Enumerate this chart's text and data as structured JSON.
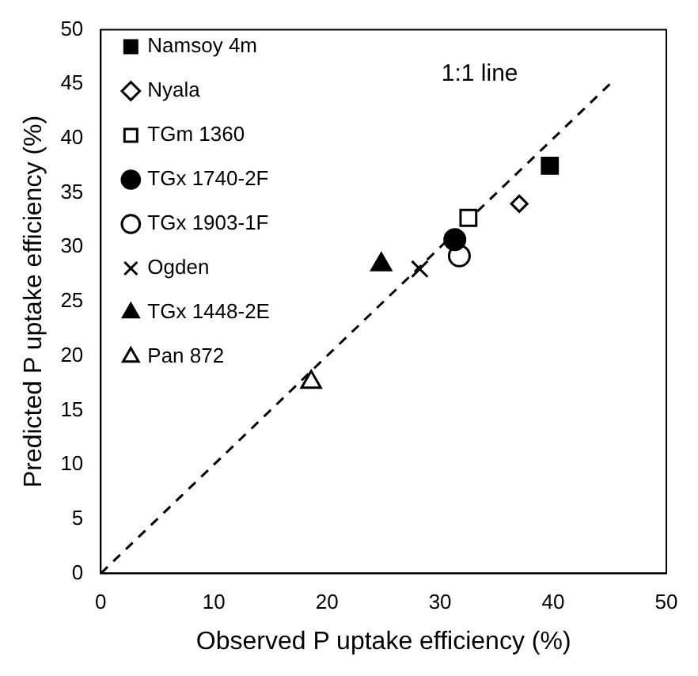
{
  "chart_data": {
    "type": "scatter",
    "xlabel": "Observed P uptake efficiency (%)",
    "ylabel": "Predicted P uptake efficiency (%)",
    "xlim": [
      0,
      50
    ],
    "ylim": [
      0,
      50
    ],
    "xticks": [
      0,
      10,
      20,
      30,
      40,
      50
    ],
    "yticks": [
      0,
      5,
      10,
      15,
      20,
      25,
      30,
      35,
      40,
      45,
      50
    ],
    "grid": false,
    "legend": "top left",
    "annotations": [
      "1:1 line"
    ],
    "series": [
      {
        "name": "Namsoy 4m",
        "color": "#000000",
        "marker": "square",
        "x": [
          39.7
        ],
        "values": [
          37.5
        ]
      },
      {
        "name": "Nyala",
        "color": "#ffffff",
        "marker": "diamond",
        "x": [
          37
        ],
        "values": [
          34
        ]
      },
      {
        "name": "TGm 1360",
        "color": "#ffffff",
        "marker": "square",
        "x": [
          32.5
        ],
        "values": [
          32.7
        ]
      },
      {
        "name": "TGx 1740-2F",
        "color": "#000000",
        "marker": "circle",
        "x": [
          31.3
        ],
        "values": [
          30.7
        ]
      },
      {
        "name": "TGx 1903-1F",
        "color": "#ffffff",
        "marker": "circle",
        "x": [
          31.7
        ],
        "values": [
          29.2
        ]
      },
      {
        "name": "Ogden",
        "color": "#000000",
        "marker": "cross",
        "x": [
          28.2
        ],
        "values": [
          28
        ]
      },
      {
        "name": "TGx 1448-2E",
        "color": "#000000",
        "marker": "triangle",
        "x": [
          24.8
        ],
        "values": [
          28.4
        ]
      },
      {
        "name": "Pan 872",
        "color": "#ffffff",
        "marker": "triangle",
        "x": [
          18.6
        ],
        "values": [
          17.6
        ]
      },
      {
        "type": "line",
        "color": "#000000",
        "line_style": "dashed",
        "marker": "none",
        "x": [
          0,
          45
        ],
        "values": [
          0,
          45
        ]
      }
    ]
  }
}
